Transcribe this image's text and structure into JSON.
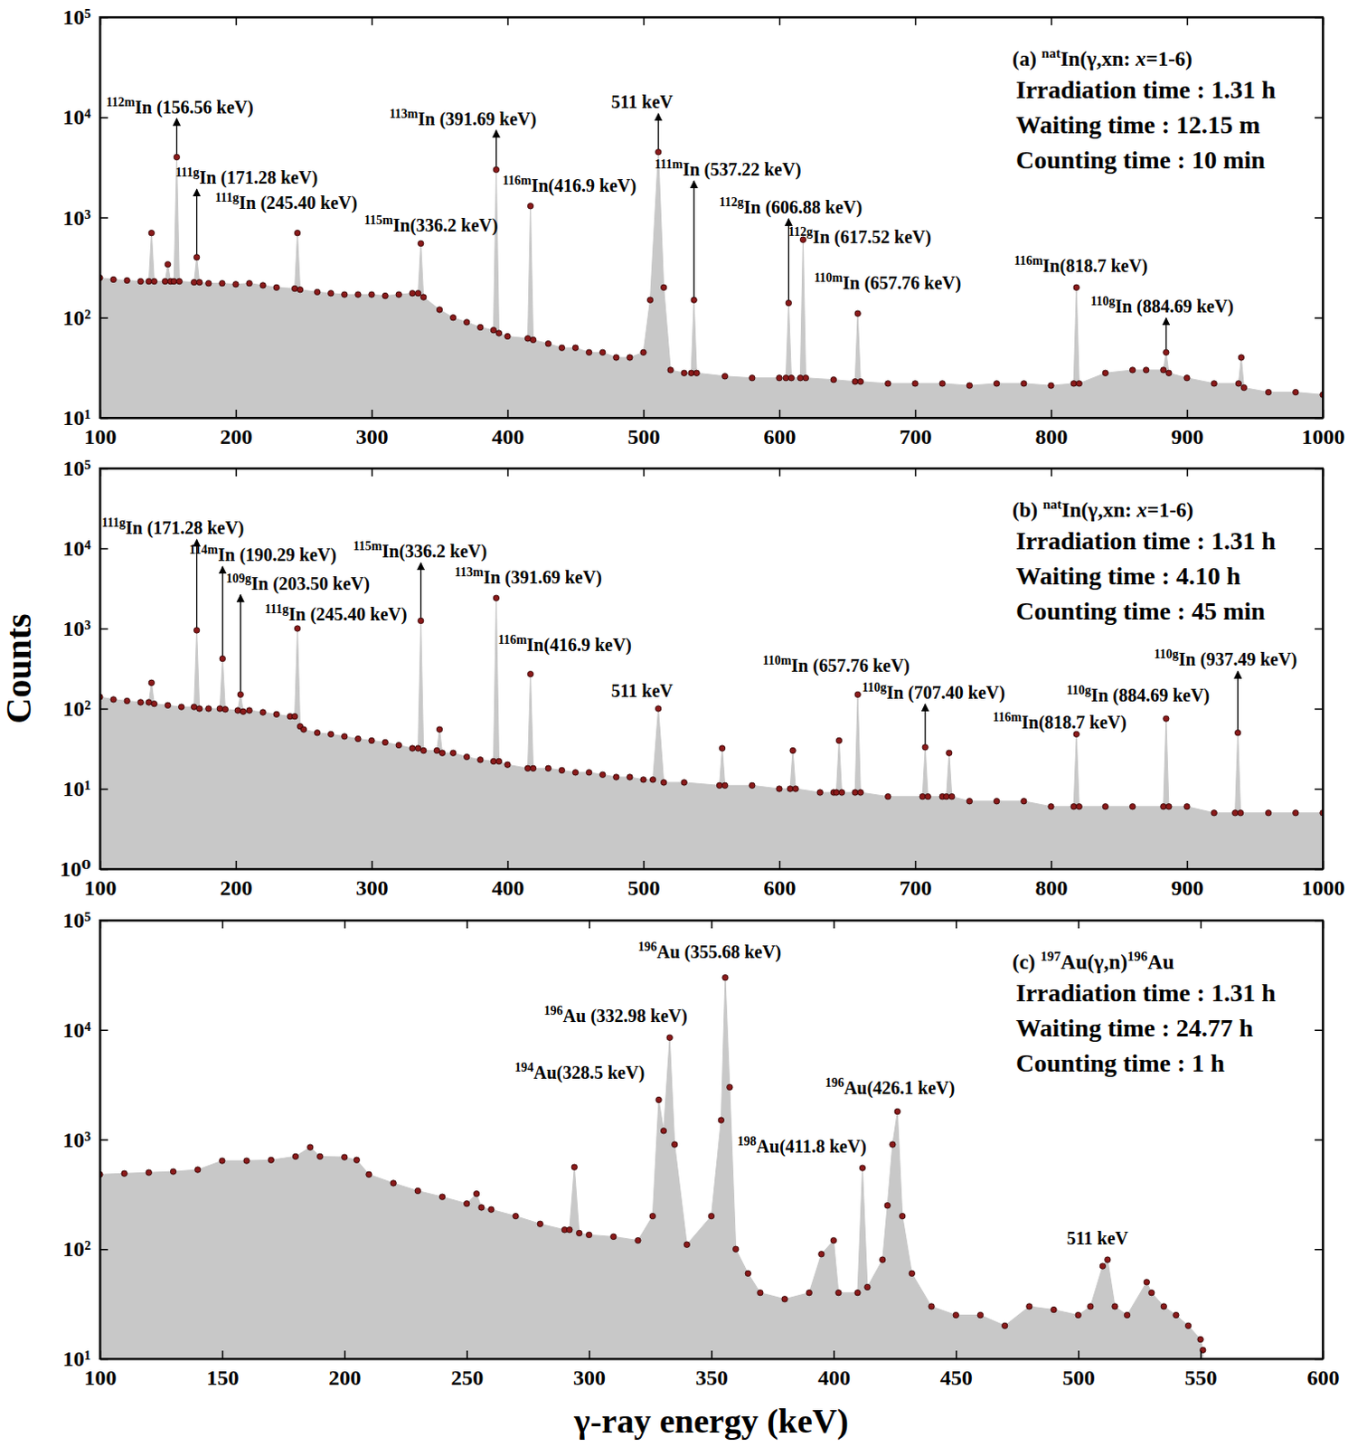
{
  "chart_data": [
    {
      "type": "area",
      "log": "y",
      "title": [
        {
          "text": "(a) "
        },
        {
          "text": "nat",
          "sup": true
        },
        {
          "text": "In(γ,xn: "
        },
        {
          "text": "x",
          "italic": true
        },
        {
          "text": "=1-6)"
        }
      ],
      "subtitle": [
        "Irradiation time : 1.31 h",
        "Waiting time : 12.15 m",
        "Counting time : 10 min"
      ],
      "xlim": [
        100,
        1000
      ],
      "xticks": [
        100,
        200,
        300,
        400,
        500,
        600,
        700,
        800,
        900,
        1000
      ],
      "ylim": [
        10,
        100000
      ],
      "yticks": [
        {
          "value": 10,
          "label": "10¹"
        },
        {
          "value": 100,
          "label": "10²"
        },
        {
          "value": 1000,
          "label": "10³"
        },
        {
          "value": 10000,
          "label": "10⁴"
        },
        {
          "value": 100000,
          "label": "10⁵"
        }
      ],
      "x": [
        100,
        110,
        120,
        130,
        136,
        138,
        140,
        148,
        150,
        152,
        154.5,
        156.56,
        158.5,
        169.3,
        171.28,
        173.3,
        180,
        190,
        200,
        210,
        220,
        230,
        243.4,
        245.4,
        247.4,
        260,
        270,
        280,
        290,
        300,
        310,
        320,
        330,
        334.2,
        336.2,
        338.2,
        350,
        360,
        370,
        380,
        389.7,
        391.69,
        393.7,
        400,
        414.9,
        416.9,
        418.9,
        430,
        440,
        450,
        460,
        470,
        480,
        490,
        500,
        505,
        511,
        515,
        520,
        530,
        535.2,
        537.22,
        539.2,
        560,
        580,
        600,
        604.9,
        606.88,
        608.9,
        615.5,
        617.52,
        619.5,
        640,
        655.8,
        657.76,
        659.8,
        680,
        700,
        720,
        740,
        760,
        780,
        800,
        816.7,
        818.7,
        820.7,
        840,
        860,
        870,
        882.7,
        884.69,
        886.7,
        900,
        920,
        938,
        940,
        942,
        960,
        980,
        1000
      ],
      "series": [
        {
          "color": "#c8c8c8",
          "marker": "circle",
          "values": [
            250,
            240,
            235,
            230,
            230,
            700,
            230,
            230,
            340,
            230,
            230,
            4000,
            230,
            225,
            400,
            225,
            220,
            220,
            215,
            220,
            210,
            200,
            195,
            700,
            190,
            180,
            175,
            170,
            170,
            170,
            165,
            170,
            175,
            175,
            550,
            160,
            120,
            100,
            90,
            80,
            75,
            3000,
            70,
            65,
            62,
            1300,
            60,
            55,
            50,
            50,
            45,
            45,
            40,
            40,
            45,
            150,
            4500,
            200,
            30,
            28,
            28,
            150,
            28,
            26,
            25,
            25,
            25,
            140,
            25,
            25,
            600,
            25,
            24,
            23,
            110,
            23,
            22,
            22,
            22,
            21,
            22,
            22,
            21,
            22,
            200,
            22,
            28,
            30,
            30,
            30,
            45,
            28,
            25,
            22,
            22,
            40,
            20,
            18,
            18,
            17
          ]
        }
      ],
      "annotations": [
        {
          "mass": "112m",
          "text": "In (156.56 keV)",
          "x": 104.7,
          "y": 11000,
          "peak": 156.56
        },
        {
          "mass": "111g",
          "text": "In (171.28 keV)",
          "x": 155.6,
          "y": 2170,
          "peak": 171.28
        },
        {
          "mass": "111g",
          "text": "In (245.40 keV)",
          "x": 184.8,
          "y": 1220,
          "peak": 245.4
        },
        {
          "mass": "115m",
          "text": "In(336.2 keV)",
          "x": 294.6,
          "y": 720,
          "peak": 336.2
        },
        {
          "mass": "113m",
          "text": "In (391.69 keV)",
          "x": 313,
          "y": 8400,
          "peak": 391.69
        },
        {
          "mass": "116m",
          "text": "In(416.9 keV)",
          "x": 396.4,
          "y": 1790,
          "peak": 416.9
        },
        {
          "text": "511 keV",
          "x": 476.4,
          "y": 12300,
          "peak": 511
        },
        {
          "mass": "111m",
          "text": "In (537.22 keV)",
          "x": 508.3,
          "y": 2620,
          "peak": 537.22
        },
        {
          "mass": "112g",
          "text": "In (606.88 keV)",
          "x": 555.8,
          "y": 1100,
          "peak": 606.88
        },
        {
          "mass": "112g",
          "text": "In (617.52 keV)",
          "x": 606.6,
          "y": 560,
          "peak": 617.52
        },
        {
          "mass": "110m",
          "text": "In (657.76 keV)",
          "x": 625.6,
          "y": 194,
          "peak": 657.76
        },
        {
          "mass": "116m",
          "text": "In(818.7 keV)",
          "x": 772.8,
          "y": 284,
          "peak": 818.7
        },
        {
          "mass": "110g",
          "text": "In (884.69 keV)",
          "x": 829.1,
          "y": 112,
          "peak": 884.69
        }
      ]
    },
    {
      "type": "area",
      "log": "y",
      "title": [
        {
          "text": "(b) "
        },
        {
          "text": "nat",
          "sup": true
        },
        {
          "text": "In(γ,xn: "
        },
        {
          "text": "x",
          "italic": true
        },
        {
          "text": "=1-6)"
        }
      ],
      "subtitle": [
        "Irradiation time : 1.31 h",
        "Waiting time : 4.10 h",
        "Counting time : 45 min"
      ],
      "y_label": "Counts",
      "xlim": [
        100,
        1000
      ],
      "xticks": [
        100,
        200,
        300,
        400,
        500,
        600,
        700,
        800,
        900,
        1000
      ],
      "ylim": [
        1,
        100000
      ],
      "yticks": [
        {
          "value": 1,
          "label": "10⁰"
        },
        {
          "value": 10,
          "label": "10¹"
        },
        {
          "value": 100,
          "label": "10²"
        },
        {
          "value": 1000,
          "label": "10³"
        },
        {
          "value": 10000,
          "label": "10⁴"
        },
        {
          "value": 100000,
          "label": "10⁵"
        }
      ],
      "x": [
        100,
        110,
        120,
        130,
        136,
        138,
        140,
        150,
        160,
        169.3,
        171.28,
        173.3,
        180,
        188.3,
        190.29,
        192.3,
        201.5,
        203.5,
        205.5,
        210,
        220,
        230,
        240,
        243.4,
        245.4,
        247.4,
        250,
        260,
        270,
        280,
        290,
        300,
        310,
        320,
        330,
        334.2,
        336.2,
        338.2,
        348,
        350,
        352,
        360,
        370,
        380,
        389.7,
        391.69,
        393.7,
        400,
        414.9,
        416.9,
        418.9,
        430,
        440,
        450,
        460,
        470,
        480,
        490,
        500,
        507,
        511,
        515,
        530,
        556,
        558,
        560,
        580,
        600,
        608,
        610,
        612,
        630,
        640,
        642,
        644,
        646,
        655.8,
        657.76,
        659.8,
        680,
        705.4,
        707.4,
        709.4,
        720,
        723,
        725,
        727,
        740,
        760,
        780,
        800,
        816.7,
        818.7,
        820.7,
        840,
        860,
        882.7,
        884.69,
        886.7,
        900,
        920,
        935.5,
        937.49,
        939.5,
        960,
        980,
        1000
      ],
      "series": [
        {
          "color": "#c8c8c8",
          "marker": "circle",
          "values": [
            140,
            130,
            125,
            120,
            120,
            210,
            115,
            110,
            105,
            105,
            950,
            100,
            100,
            100,
            420,
            98,
            95,
            150,
            92,
            95,
            90,
            85,
            80,
            80,
            1000,
            60,
            55,
            50,
            48,
            45,
            42,
            40,
            38,
            35,
            32,
            32,
            1250,
            30,
            30,
            55,
            28,
            28,
            25,
            23,
            22,
            2400,
            22,
            20,
            18,
            270,
            18,
            18,
            17,
            16,
            16,
            15,
            14,
            14,
            13,
            13,
            100,
            12,
            12,
            11,
            32,
            11,
            11,
            10,
            10,
            30,
            10,
            9,
            9,
            9,
            40,
            9,
            9,
            150,
            9,
            8,
            8,
            33,
            8,
            8,
            8,
            28,
            8,
            7,
            7,
            7,
            6,
            6,
            48,
            6,
            6,
            6,
            6,
            75,
            6,
            6,
            5,
            5,
            50,
            5,
            5,
            5,
            5
          ]
        }
      ],
      "annotations": [
        {
          "mass": "111g",
          "text": "In (171.28 keV)",
          "x": 101.4,
          "y": 15100,
          "peak": 171.28
        },
        {
          "mass": "114m",
          "text": "In (190.29 keV)",
          "x": 165.8,
          "y": 6930,
          "peak": 190.29
        },
        {
          "mass": "115m",
          "text": "In(336.2 keV)",
          "x": 286.5,
          "y": 7700,
          "peak": 336.2
        },
        {
          "mass": "109g",
          "text": "In (203.50 keV)",
          "x": 192.9,
          "y": 3080,
          "peak": 203.5
        },
        {
          "mass": "111g",
          "text": "In (245.40 keV)",
          "x": 221.4,
          "y": 1270,
          "peak": 245.4
        },
        {
          "mass": "113m",
          "text": "In (391.69 keV)",
          "x": 361.1,
          "y": 3600,
          "peak": 391.69
        },
        {
          "mass": "116m",
          "text": "In(416.9 keV)",
          "x": 393,
          "y": 520,
          "peak": 416.9
        },
        {
          "text": "511 keV",
          "x": 476.4,
          "y": 141,
          "peak": 511
        },
        {
          "mass": "110m",
          "text": "In (657.76 keV)",
          "x": 587.7,
          "y": 292,
          "peak": 657.76
        },
        {
          "mass": "110g",
          "text": "In (707.40 keV)",
          "x": 660.9,
          "y": 133,
          "peak": 707.4
        },
        {
          "mass": "116m",
          "text": "In(818.7 keV)",
          "x": 757.2,
          "y": 56,
          "peak": 818.7
        },
        {
          "mass": "110g",
          "text": "In (884.69 keV)",
          "x": 811.5,
          "y": 123,
          "peak": 884.69
        },
        {
          "mass": "110g",
          "text": "In (937.49 keV)",
          "x": 875.9,
          "y": 342,
          "peak": 937.49
        }
      ]
    },
    {
      "type": "area",
      "log": "y",
      "title": [
        {
          "text": "(c) "
        },
        {
          "text": "197",
          "sup": true
        },
        {
          "text": "Au(γ,n)"
        },
        {
          "text": "196",
          "sup": true
        },
        {
          "text": "Au"
        }
      ],
      "subtitle": [
        "Irradiation time : 1.31 h",
        "Waiting time : 24.77 h",
        "Counting time : 1 h"
      ],
      "x_label": "γ-ray energy (keV)",
      "xlim": [
        100,
        600
      ],
      "xticks": [
        100,
        150,
        200,
        250,
        300,
        350,
        400,
        450,
        500,
        550,
        600
      ],
      "ylim": [
        10,
        100000
      ],
      "yticks": [
        {
          "value": 10,
          "label": "10¹"
        },
        {
          "value": 100,
          "label": "10²"
        },
        {
          "value": 1000,
          "label": "10³"
        },
        {
          "value": 10000,
          "label": "10⁴"
        },
        {
          "value": 100000,
          "label": "10⁵"
        }
      ],
      "x": [
        100,
        110,
        120,
        130,
        140,
        150,
        160,
        170,
        180,
        186,
        190,
        200,
        205,
        210,
        220,
        230,
        240,
        250,
        254,
        256,
        260,
        270,
        280,
        290,
        292,
        294,
        296,
        300,
        310,
        320,
        326,
        328.5,
        330.5,
        332.98,
        335,
        340,
        350,
        354,
        355.68,
        357.5,
        360,
        365,
        370,
        380,
        390,
        395,
        400,
        402,
        409.8,
        411.8,
        413.8,
        420,
        422,
        424.1,
        426.1,
        428.1,
        432,
        440,
        450,
        460,
        470,
        480,
        490,
        500,
        505,
        510,
        512,
        515,
        520,
        528,
        530,
        535,
        540,
        545,
        550,
        551
      ],
      "series": [
        {
          "color": "#c8c8c8",
          "marker": "circle",
          "values": [
            480,
            490,
            500,
            510,
            530,
            640,
            640,
            650,
            700,
            850,
            700,
            690,
            650,
            480,
            400,
            340,
            300,
            260,
            320,
            240,
            230,
            200,
            170,
            150,
            150,
            560,
            140,
            135,
            130,
            120,
            200,
            2300,
            1200,
            8500,
            900,
            110,
            200,
            1500,
            30000,
            3000,
            100,
            60,
            40,
            35,
            40,
            90,
            120,
            40,
            40,
            550,
            45,
            80,
            250,
            900,
            1800,
            200,
            60,
            30,
            25,
            25,
            20,
            30,
            28,
            25,
            30,
            70,
            80,
            30,
            25,
            50,
            40,
            30,
            25,
            20,
            15,
            12
          ]
        }
      ],
      "annotations": [
        {
          "mass": "196",
          "text": "Au (355.68 keV)",
          "x": 320,
          "y": 45500,
          "peak": 355.68
        },
        {
          "mass": "196",
          "text": "Au (332.98 keV)",
          "x": 281.6,
          "y": 11800,
          "peak": 332.98
        },
        {
          "mass": "194",
          "text": "Au(328.5 keV)",
          "x": 269.6,
          "y": 3590,
          "peak": 328.5
        },
        {
          "mass": "198",
          "text": "Au(411.8 keV)",
          "x": 360.7,
          "y": 757,
          "peak": 411.8
        },
        {
          "mass": "196",
          "text": "Au(426.1 keV)",
          "x": 396.5,
          "y": 2590,
          "peak": 426.1
        },
        {
          "text": "511 keV",
          "x": 495.3,
          "y": 111,
          "peak": 511
        }
      ]
    }
  ]
}
